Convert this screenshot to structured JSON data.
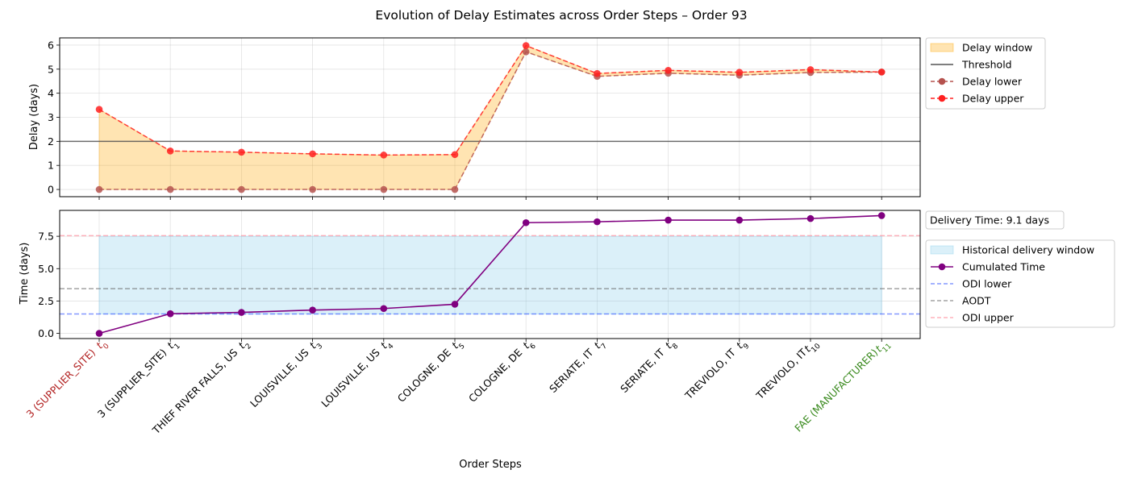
{
  "title": "Evolution of Delay Estimates across Order Steps – Order 93",
  "xlabel": "Order Steps",
  "steps": [
    {
      "label": "3 (SUPPLIER_SITE)",
      "t": "0",
      "color": "#b22222"
    },
    {
      "label": "3 (SUPPLIER_SITE)",
      "t": "1",
      "color": "#000000"
    },
    {
      "label": "THIEF RIVER FALLS, US",
      "t": "2",
      "color": "#000000"
    },
    {
      "label": "LOUISVILLE, US",
      "t": "3",
      "color": "#000000"
    },
    {
      "label": "LOUISVILLE, US",
      "t": "4",
      "color": "#000000"
    },
    {
      "label": "COLOGNE, DE",
      "t": "5",
      "color": "#000000"
    },
    {
      "label": "COLOGNE, DE",
      "t": "6",
      "color": "#000000"
    },
    {
      "label": "SERIATE, IT",
      "t": "7",
      "color": "#000000"
    },
    {
      "label": "SERIATE, IT",
      "t": "8",
      "color": "#000000"
    },
    {
      "label": "TREVIOLO, IT",
      "t": "9",
      "color": "#000000"
    },
    {
      "label": "TREVIOLO, IT",
      "t": "10",
      "color": "#000000"
    },
    {
      "label": "FAE (MANUFACTURER)",
      "t": "11",
      "color": "#3a8a1e"
    }
  ],
  "chart_data": [
    {
      "type": "line",
      "ylabel": "Delay (days)",
      "ylim": [
        -0.3,
        6.3
      ],
      "yticks": [
        "0",
        "1",
        "2",
        "3",
        "4",
        "5",
        "6"
      ],
      "grid": true,
      "legend_position": "outside right, top",
      "threshold": 2.0,
      "series": [
        {
          "name": "Delay lower",
          "values": [
            0,
            0,
            0,
            0,
            0,
            0,
            5.72,
            4.7,
            4.83,
            4.75,
            4.86,
            4.88
          ],
          "color": "#b5524e"
        },
        {
          "name": "Delay upper",
          "values": [
            3.33,
            1.6,
            1.55,
            1.48,
            1.43,
            1.45,
            5.98,
            4.82,
            4.95,
            4.87,
            4.98,
            4.88
          ],
          "color": "#ff2020"
        }
      ],
      "legend": [
        "Delay window",
        "Threshold",
        "Delay lower",
        "Delay upper"
      ]
    },
    {
      "type": "line",
      "ylabel": "Time (days)",
      "ylim": [
        -0.4,
        9.5
      ],
      "yticks": [
        "0.0",
        "2.5",
        "5.0",
        "7.5"
      ],
      "grid": true,
      "legend_position": "outside right",
      "annotation": "Delivery Time: 9.1 days",
      "historical_window": [
        1.5,
        7.5
      ],
      "odi_lower": 1.5,
      "aodt": 3.45,
      "odi_upper": 7.55,
      "series": [
        {
          "name": "Cumulated Time",
          "values": [
            0,
            1.52,
            1.62,
            1.8,
            1.92,
            2.25,
            8.55,
            8.62,
            8.75,
            8.75,
            8.87,
            9.1
          ],
          "color": "#800080"
        }
      ],
      "legend": [
        "Historical delivery window",
        "Cumulated Time",
        "ODI lower",
        "AODT",
        "ODI upper"
      ]
    }
  ]
}
